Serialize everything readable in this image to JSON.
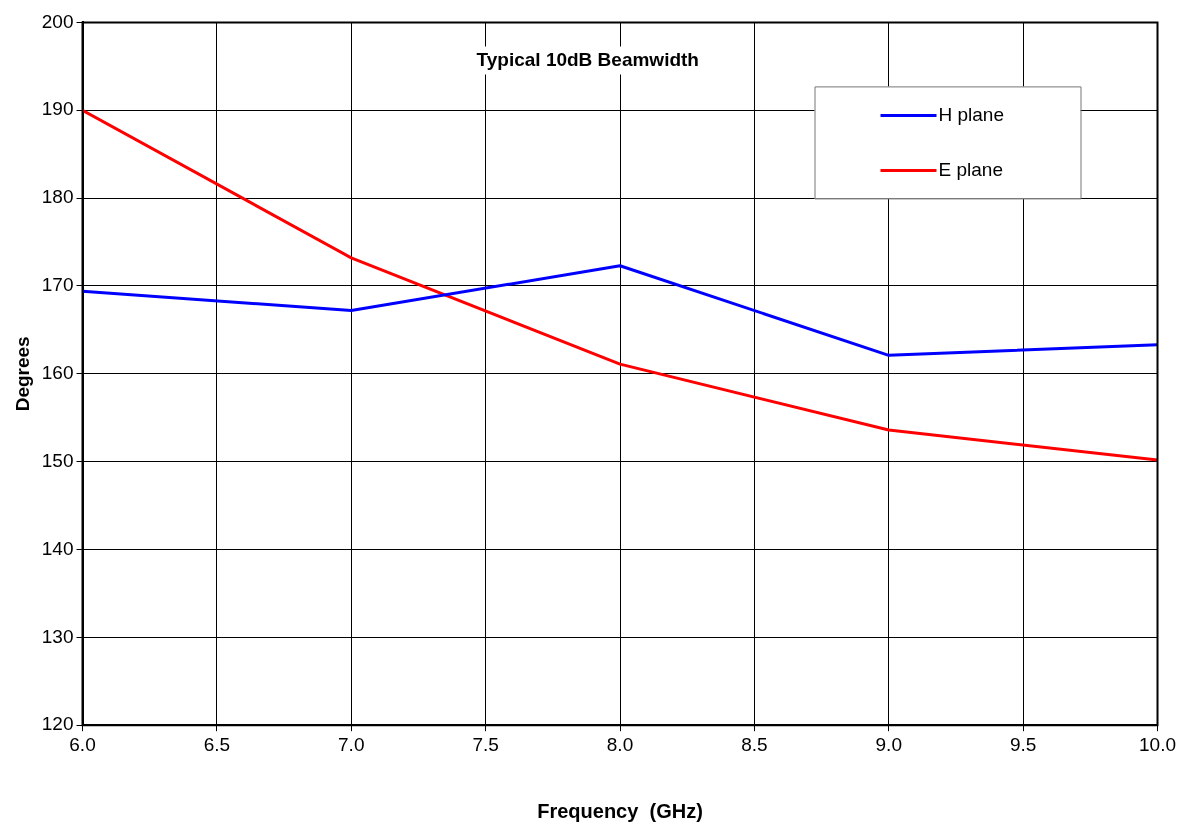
{
  "chart_data": {
    "type": "line",
    "title": "Typical 10dB Beamwidth",
    "xlabel": "Frequency  (GHz)",
    "ylabel": "Degrees",
    "x": [
      6,
      7,
      8,
      9,
      10
    ],
    "series": [
      {
        "name": "H plane",
        "color": "#0000ff",
        "values": [
          169.4,
          167.2,
          172.3,
          162.1,
          163.3
        ]
      },
      {
        "name": "E plane",
        "color": "#ff0000",
        "values": [
          190,
          173.2,
          161.1,
          153.6,
          150.2
        ]
      }
    ],
    "xlim": [
      6,
      10
    ],
    "xticks": [
      {
        "value": 6,
        "label": "6.0"
      },
      {
        "value": 6.5,
        "label": "6.5"
      },
      {
        "value": 7,
        "label": "7.0"
      },
      {
        "value": 7.5,
        "label": "7.5"
      },
      {
        "value": 8,
        "label": "8.0"
      },
      {
        "value": 8.5,
        "label": "8.5"
      },
      {
        "value": 9,
        "label": "9.0"
      },
      {
        "value": 9.5,
        "label": "9.5"
      },
      {
        "value": 10,
        "label": "10.0"
      }
    ],
    "ylim": [
      120,
      200
    ],
    "yticks": [
      120,
      130,
      140,
      150,
      160,
      170,
      180,
      190,
      200
    ],
    "grid": true,
    "legend": "top right",
    "marker": "none",
    "line_style": "solid"
  }
}
